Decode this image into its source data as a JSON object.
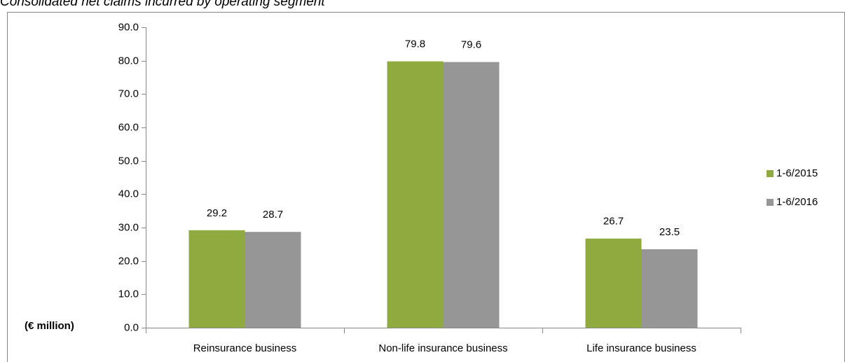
{
  "chart_data": {
    "type": "bar",
    "title": "Consolidated net claims incurred by operating segment",
    "y_label": "(€ million)",
    "categories": [
      "Reinsurance business",
      "Non-life insurance business",
      "Life insurance business"
    ],
    "series": [
      {
        "name": "1-6/2015",
        "color": "#8faa3f",
        "values": [
          29.2,
          79.8,
          26.7
        ]
      },
      {
        "name": "1-6/2016",
        "color": "#969696",
        "values": [
          28.7,
          79.6,
          23.5
        ]
      }
    ],
    "ylim": [
      0,
      90
    ],
    "yticks": [
      {
        "value": 0,
        "label": "0.0"
      },
      {
        "value": 10,
        "label": "10.0"
      },
      {
        "value": 20,
        "label": "20.0"
      },
      {
        "value": 30,
        "label": "30.0"
      },
      {
        "value": 40,
        "label": "40.0"
      },
      {
        "value": 50,
        "label": "50.0"
      },
      {
        "value": 60,
        "label": "60.0"
      },
      {
        "value": 70,
        "label": "70.0"
      },
      {
        "value": 80,
        "label": "80.0"
      },
      {
        "value": 90,
        "label": "90.0"
      }
    ],
    "grid": false,
    "legend": "right"
  }
}
